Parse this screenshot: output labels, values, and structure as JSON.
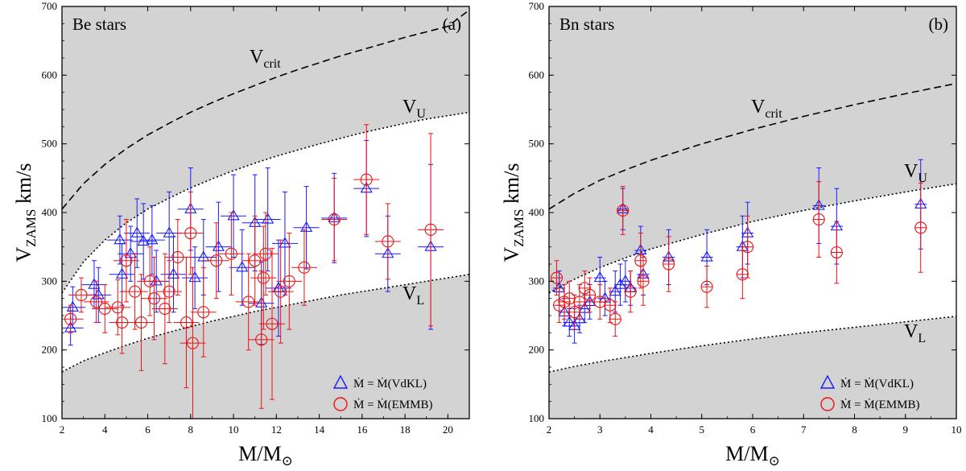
{
  "colors": {
    "vdkl": "#1a1aff",
    "emmb": "#ee1111",
    "band": "#d3d3d3",
    "axis": "#000000"
  },
  "chart_data": [
    {
      "type": "scatter",
      "panel_label": "(a)",
      "title": "Be stars",
      "xlabel": {
        "main": "M/M",
        "sub": "⊙"
      },
      "ylabel": {
        "main": "V",
        "sub": "ZAMS",
        "tail": " km/s"
      },
      "xlim": [
        2,
        21
      ],
      "ylim": [
        100,
        700
      ],
      "xticks": [
        2,
        4,
        6,
        8,
        10,
        12,
        14,
        16,
        18,
        20
      ],
      "yticks": [
        100,
        200,
        300,
        400,
        500,
        600,
        700
      ],
      "curves": {
        "vcrit": {
          "label": "V",
          "sub": "crit",
          "x": [
            2,
            3,
            4,
            5,
            6,
            7,
            8,
            9,
            10,
            11,
            12,
            13,
            14,
            15,
            16,
            17,
            18,
            19,
            20,
            21
          ],
          "y": [
            405,
            442,
            470,
            493,
            513,
            530,
            546,
            560,
            573,
            585,
            597,
            608,
            618,
            628,
            637,
            646,
            655,
            663,
            671,
            695
          ]
        },
        "vu": {
          "label": "V",
          "sub": "U",
          "x": [
            2,
            3,
            4,
            5,
            6,
            7,
            8,
            9,
            10,
            11,
            12,
            13,
            14,
            15,
            16,
            17,
            18,
            19,
            20,
            21
          ],
          "y": [
            283,
            328,
            360,
            385,
            405,
            421,
            436,
            449,
            461,
            472,
            482,
            491,
            500,
            508,
            516,
            523,
            530,
            536,
            541,
            546
          ]
        },
        "vl": {
          "label": "V",
          "sub": "L",
          "x": [
            2,
            3,
            4,
            5,
            6,
            7,
            8,
            9,
            10,
            11,
            12,
            13,
            14,
            15,
            16,
            17,
            18,
            19,
            20,
            21
          ],
          "y": [
            168,
            184,
            196,
            207,
            217,
            226,
            234,
            242,
            249,
            256,
            262,
            268,
            274,
            280,
            285,
            290,
            295,
            300,
            305,
            310
          ]
        }
      },
      "series": [
        {
          "name": "VdKL",
          "points": [
            [
              2.4,
              232
            ],
            [
              2.5,
              262
            ],
            [
              3.5,
              295
            ],
            [
              3.7,
              280
            ],
            [
              4.7,
              360
            ],
            [
              4.8,
              310
            ],
            [
              5.2,
              340
            ],
            [
              5.5,
              370
            ],
            [
              5.8,
              358
            ],
            [
              6.2,
              360
            ],
            [
              6.4,
              300
            ],
            [
              7.0,
              370
            ],
            [
              7.2,
              310
            ],
            [
              8.0,
              405
            ],
            [
              8.2,
              305
            ],
            [
              8.6,
              335
            ],
            [
              9.3,
              350
            ],
            [
              10.0,
              395
            ],
            [
              10.4,
              320
            ],
            [
              11.0,
              385
            ],
            [
              11.3,
              268
            ],
            [
              11.6,
              390
            ],
            [
              12.1,
              290
            ],
            [
              12.4,
              355
            ],
            [
              13.4,
              378
            ],
            [
              14.7,
              392
            ],
            [
              16.2,
              435
            ],
            [
              17.2,
              340
            ],
            [
              19.2,
              350
            ]
          ],
          "yerr": [
            25,
            30,
            35,
            40,
            35,
            45,
            40,
            50,
            55,
            50,
            45,
            60,
            55,
            60,
            45,
            55,
            65,
            60,
            55,
            70,
            60,
            75,
            70,
            75,
            60,
            65,
            70,
            55,
            120
          ]
        },
        {
          "name": "EMMB",
          "points": [
            [
              2.4,
              245
            ],
            [
              2.9,
              280
            ],
            [
              3.6,
              270
            ],
            [
              4.0,
              260
            ],
            [
              4.6,
              262
            ],
            [
              4.8,
              240
            ],
            [
              5.0,
              330
            ],
            [
              5.4,
              285
            ],
            [
              5.7,
              240
            ],
            [
              6.1,
              300
            ],
            [
              6.3,
              275
            ],
            [
              6.8,
              260
            ],
            [
              7.0,
              285
            ],
            [
              7.4,
              335
            ],
            [
              7.8,
              240
            ],
            [
              8.0,
              370
            ],
            [
              8.1,
              210
            ],
            [
              8.6,
              255
            ],
            [
              9.2,
              330
            ],
            [
              9.9,
              340
            ],
            [
              10.7,
              270
            ],
            [
              11.0,
              330
            ],
            [
              11.4,
              305
            ],
            [
              11.5,
              340
            ],
            [
              11.3,
              215
            ],
            [
              11.8,
              238
            ],
            [
              12.2,
              285
            ],
            [
              12.6,
              300
            ],
            [
              13.3,
              320
            ],
            [
              14.7,
              390
            ],
            [
              16.2,
              448
            ],
            [
              17.2,
              358
            ],
            [
              19.2,
              375
            ]
          ],
          "yerr": [
            20,
            25,
            30,
            35,
            40,
            45,
            60,
            55,
            70,
            50,
            60,
            80,
            45,
            55,
            95,
            60,
            110,
            65,
            55,
            60,
            70,
            65,
            75,
            60,
            100,
            110,
            75,
            70,
            55,
            60,
            80,
            55,
            140
          ]
        }
      ],
      "legend": {
        "position": "bottom-right",
        "entries": [
          "Ṁ = Ṁ(VdKL)",
          "Ṁ = Ṁ(EMMB)"
        ]
      }
    },
    {
      "type": "scatter",
      "panel_label": "(b)",
      "title": "Bn stars",
      "xlabel": {
        "main": "M/M",
        "sub": "⊙"
      },
      "ylabel": {
        "main": "V",
        "sub": "ZAMS",
        "tail": " km/s"
      },
      "xlim": [
        2,
        10
      ],
      "ylim": [
        100,
        700
      ],
      "xticks": [
        2,
        3,
        4,
        5,
        6,
        7,
        8,
        9,
        10
      ],
      "yticks": [
        100,
        200,
        300,
        400,
        500,
        600,
        700
      ],
      "curves": {
        "vcrit": {
          "label": "V",
          "sub": "crit",
          "x": [
            2,
            2.5,
            3,
            3.5,
            4,
            5,
            6,
            7,
            8,
            9,
            10
          ],
          "y": [
            405,
            428,
            447,
            462,
            476,
            500,
            521,
            540,
            557,
            573,
            588
          ]
        },
        "vu": {
          "label": "V",
          "sub": "U",
          "x": [
            2,
            2.5,
            3,
            3.5,
            4,
            5,
            6,
            7,
            8,
            9,
            10
          ],
          "y": [
            283,
            303,
            320,
            334,
            347,
            368,
            387,
            403,
            417,
            430,
            442
          ]
        },
        "vl": {
          "label": "V",
          "sub": "L",
          "x": [
            2,
            2.5,
            3,
            3.5,
            4,
            5,
            6,
            7,
            8,
            9,
            10
          ],
          "y": [
            168,
            176,
            183,
            189,
            195,
            206,
            216,
            225,
            233,
            241,
            249
          ]
        }
      },
      "series": [
        {
          "name": "VdKL",
          "points": [
            [
              2.2,
              290
            ],
            [
              2.3,
              255
            ],
            [
              2.4,
              240
            ],
            [
              2.5,
              235
            ],
            [
              2.6,
              245
            ],
            [
              2.7,
              260
            ],
            [
              2.8,
              270
            ],
            [
              3.0,
              305
            ],
            [
              3.1,
              275
            ],
            [
              3.3,
              285
            ],
            [
              3.4,
              295
            ],
            [
              3.45,
              405
            ],
            [
              3.5,
              300
            ],
            [
              3.6,
              290
            ],
            [
              3.8,
              345
            ],
            [
              3.85,
              310
            ],
            [
              4.35,
              335
            ],
            [
              5.1,
              335
            ],
            [
              5.8,
              350
            ],
            [
              5.9,
              370
            ],
            [
              7.3,
              410
            ],
            [
              7.65,
              380
            ],
            [
              9.3,
              412
            ]
          ],
          "yerr": [
            25,
            20,
            20,
            25,
            20,
            20,
            25,
            30,
            25,
            30,
            30,
            30,
            30,
            25,
            35,
            30,
            40,
            40,
            45,
            45,
            55,
            55,
            65
          ]
        },
        {
          "name": "EMMB",
          "points": [
            [
              2.15,
              305
            ],
            [
              2.2,
              265
            ],
            [
              2.3,
              270
            ],
            [
              2.4,
              275
            ],
            [
              2.5,
              255
            ],
            [
              2.6,
              270
            ],
            [
              2.7,
              290
            ],
            [
              2.8,
              280
            ],
            [
              3.0,
              270
            ],
            [
              3.2,
              265
            ],
            [
              3.3,
              245
            ],
            [
              3.45,
              403
            ],
            [
              3.6,
              285
            ],
            [
              3.8,
              330
            ],
            [
              3.85,
              300
            ],
            [
              4.35,
              325
            ],
            [
              5.1,
              292
            ],
            [
              5.8,
              310
            ],
            [
              5.9,
              350
            ],
            [
              7.3,
              390
            ],
            [
              7.65,
              342
            ],
            [
              9.3,
              378
            ]
          ],
          "yerr": [
            25,
            25,
            25,
            25,
            25,
            25,
            25,
            25,
            25,
            25,
            25,
            35,
            30,
            40,
            35,
            40,
            30,
            35,
            45,
            55,
            45,
            65
          ]
        }
      ],
      "legend": {
        "position": "bottom-right",
        "entries": [
          "Ṁ = Ṁ(VdKL)",
          "Ṁ = Ṁ(EMMB)"
        ]
      }
    }
  ]
}
